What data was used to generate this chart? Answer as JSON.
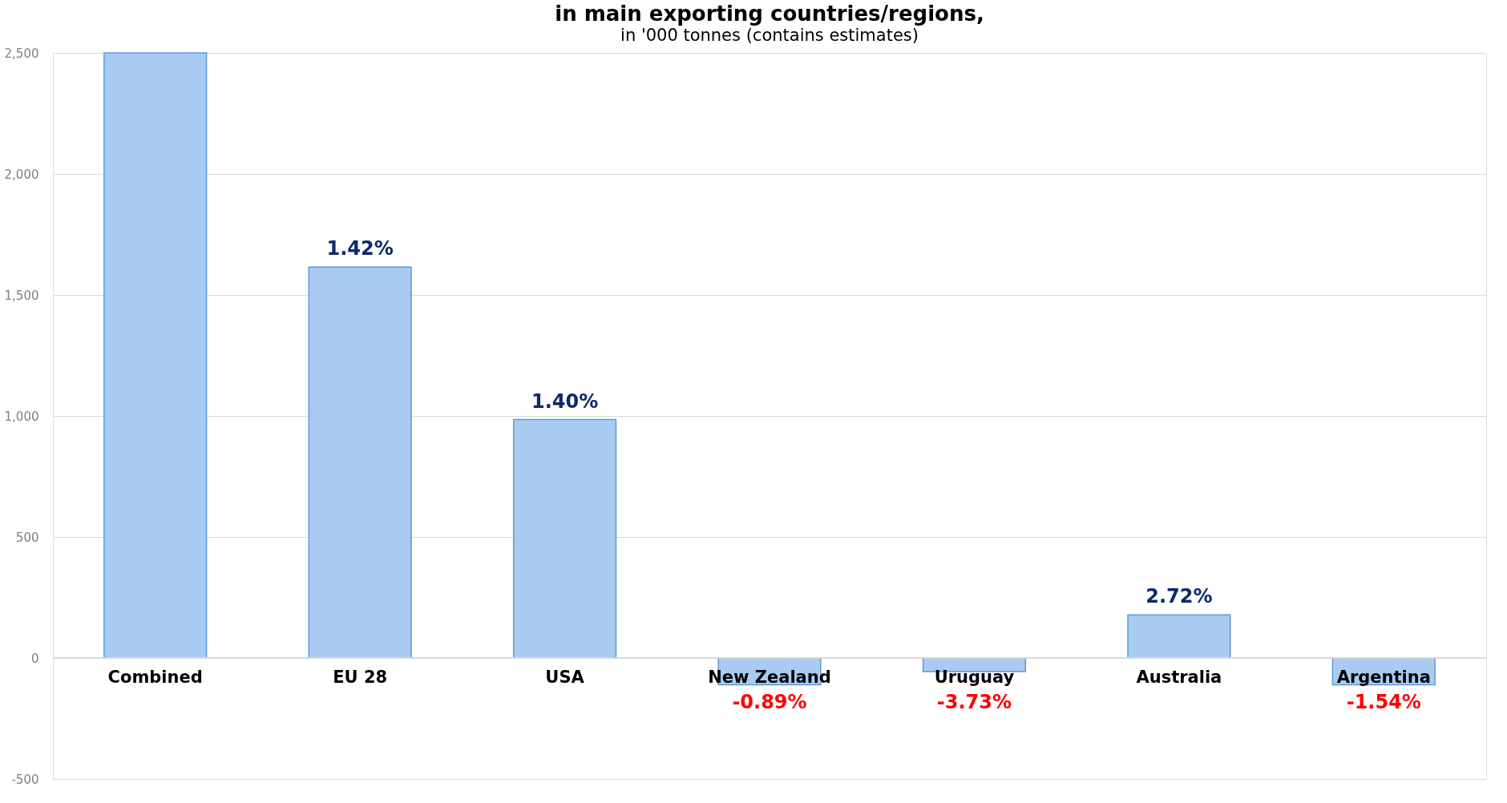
{
  "chart_data": {
    "type": "bar",
    "title": "in main exporting countries/regions,",
    "subtitle": "in '000 tonnes (contains estimates)",
    "categories": [
      "Combined",
      "EU 28",
      "USA",
      "New Zealand",
      "Uruguay",
      "Australia",
      "Argentina"
    ],
    "values": [
      2500,
      1615,
      985,
      -111,
      -56,
      178,
      -111
    ],
    "color": "#a9cbf2",
    "annotations": [
      {
        "text": "1.42%",
        "x": "EU 28",
        "y": 1615
      },
      {
        "text": "1.40%",
        "x": "USA",
        "y": 985
      },
      {
        "text": "-0.89%",
        "x": "New Zealand",
        "y": -111
      },
      {
        "text": "-3.73%",
        "x": "Uruguay",
        "y": -56
      },
      {
        "text": "2.72%",
        "x": "Australia",
        "y": 178
      },
      {
        "text": "-1.54%",
        "x": "Argentina",
        "y": -111
      }
    ],
    "ylim": [
      -500,
      2500
    ],
    "yticks": [
      {
        "value": -500,
        "label": "-500"
      },
      0,
      500,
      {
        "value": 1000,
        "label": "1,000"
      },
      {
        "value": 1500,
        "label": "1,500"
      },
      {
        "value": 2000,
        "label": "2,000"
      },
      {
        "value": 2500,
        "label": "2,500"
      }
    ],
    "grid": "y"
  }
}
